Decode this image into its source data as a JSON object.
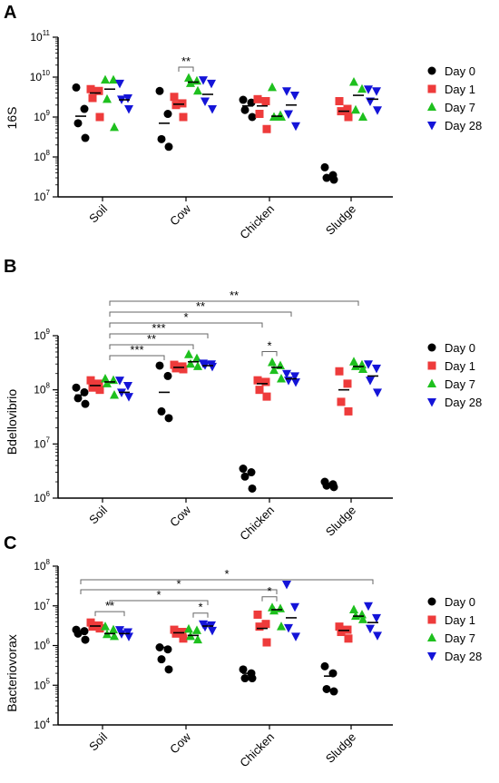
{
  "chart_data": [
    {
      "type": "scatter",
      "panel": "A",
      "ylabel": "16S",
      "yscale": "log",
      "ylim": [
        10000000,
        100000000000
      ],
      "ytick_exponents": [
        7,
        8,
        9,
        10,
        11
      ],
      "tick_base": "10",
      "categories": [
        "Soil",
        "Cow",
        "Chicken",
        "Sludge"
      ],
      "legend": {
        "placement": "right",
        "entries": [
          "Day 0",
          "Day 1",
          "Day 7",
          "Day 28"
        ]
      },
      "series": [
        {
          "name": "Day 0",
          "color": "#000000",
          "marker": "circle",
          "values": [
            [
              5500000000,
              1600000000,
              700000000,
              300000000
            ],
            [
              4500000000,
              1200000000,
              280000000,
              180000000
            ],
            [
              2700000000,
              2300000000,
              1500000000,
              1000000000
            ],
            [
              55000000,
              35000000,
              30000000,
              27000000
            ]
          ]
        },
        {
          "name": "Day 1",
          "color": "#ee3b3b",
          "marker": "square",
          "values": [
            [
              5000000000,
              4500000000,
              3000000000,
              1000000000
            ],
            [
              3200000000,
              2200000000,
              2000000000,
              1000000000
            ],
            [
              2800000000,
              2500000000,
              1200000000,
              500000000
            ],
            [
              2500000000,
              1600000000,
              1400000000,
              1000000000
            ]
          ]
        },
        {
          "name": "Day 7",
          "color": "#1ec01e",
          "marker": "triangle-up",
          "values": [
            [
              8500000000,
              8500000000,
              2800000000,
              550000000
            ],
            [
              9500000000,
              8000000000,
              7000000000,
              4500000000
            ],
            [
              5500000000,
              1100000000,
              1000000000,
              1000000000
            ],
            [
              7500000000,
              5000000000,
              1500000000,
              1000000000
            ]
          ]
        },
        {
          "name": "Day 28",
          "color": "#1414d8",
          "marker": "triangle-down",
          "values": [
            [
              7000000000,
              3000000000,
              2800000000,
              1600000000
            ],
            [
              8500000000,
              7000000000,
              2500000000,
              1600000000
            ],
            [
              4500000000,
              3500000000,
              1200000000,
              600000000
            ],
            [
              5000000000,
              4500000000,
              2500000000,
              1500000000
            ]
          ]
        }
      ],
      "medians": [
        [
          1050000000,
          4000000000,
          5000000000,
          2700000000
        ],
        [
          700000000,
          2100000000,
          7500000000,
          3700000000
        ],
        [
          1900000000,
          1900000000,
          1050000000,
          2000000000
        ],
        [
          32000000,
          1400000000,
          3500000000,
          2800000000
        ]
      ],
      "significance": [
        {
          "from": {
            "category": "Cow",
            "series": "Day 1"
          },
          "to": {
            "category": "Cow",
            "series": "Day 7"
          },
          "label": "**",
          "tier": 0
        }
      ]
    },
    {
      "type": "scatter",
      "panel": "B",
      "ylabel": "Bdellovibrio",
      "yscale": "log",
      "ylim": [
        1000000,
        1000000000
      ],
      "ytick_exponents": [
        6,
        7,
        8,
        9
      ],
      "tick_base": "10",
      "categories": [
        "Soil",
        "Cow",
        "Chicken",
        "Sludge"
      ],
      "legend": {
        "placement": "right",
        "entries": [
          "Day 0",
          "Day 1",
          "Day 7",
          "Day 28"
        ]
      },
      "series": [
        {
          "name": "Day 0",
          "color": "#000000",
          "marker": "circle",
          "values": [
            [
              110000000,
              90000000,
              70000000,
              55000000
            ],
            [
              280000000,
              180000000,
              40000000,
              30000000
            ],
            [
              3500000,
              3000000,
              2500000,
              1500000
            ],
            [
              2000000,
              1800000,
              1700000,
              1600000
            ]
          ]
        },
        {
          "name": "Day 1",
          "color": "#ee3b3b",
          "marker": "square",
          "values": [
            [
              150000000,
              130000000,
              110000000,
              100000000
            ],
            [
              290000000,
              270000000,
              250000000,
              240000000
            ],
            [
              150000000,
              140000000,
              100000000,
              75000000
            ],
            [
              220000000,
              130000000,
              60000000,
              40000000
            ]
          ]
        },
        {
          "name": "Day 7",
          "color": "#1ec01e",
          "marker": "triangle-up",
          "values": [
            [
              160000000,
              150000000,
              130000000,
              80000000
            ],
            [
              450000000,
              380000000,
              300000000,
              270000000
            ],
            [
              320000000,
              280000000,
              230000000,
              160000000
            ],
            [
              330000000,
              290000000,
              270000000,
              240000000
            ]
          ]
        },
        {
          "name": "Day 28",
          "color": "#1414d8",
          "marker": "triangle-down",
          "values": [
            [
              150000000,
              120000000,
              90000000,
              75000000
            ],
            [
              310000000,
              300000000,
              290000000,
              270000000
            ],
            [
              200000000,
              180000000,
              150000000,
              140000000
            ],
            [
              300000000,
              250000000,
              150000000,
              90000000
            ]
          ]
        }
      ],
      "medians": [
        [
          80000000,
          120000000,
          140000000,
          90000000
        ],
        [
          90000000,
          260000000,
          330000000,
          280000000
        ],
        [
          2700000,
          130000000,
          260000000,
          160000000
        ],
        [
          1800000,
          100000000,
          270000000,
          180000000
        ]
      ],
      "significance": [
        {
          "from": {
            "category": "Soil",
            "series": "Day 7"
          },
          "to": {
            "category": "Cow",
            "series": "Day 0"
          },
          "label": "***",
          "tier": 0
        },
        {
          "from": {
            "category": "Soil",
            "series": "Day 7"
          },
          "to": {
            "category": "Cow",
            "series": "Day 7"
          },
          "label": "**",
          "tier": 1
        },
        {
          "from": {
            "category": "Soil",
            "series": "Day 7"
          },
          "to": {
            "category": "Cow",
            "series": "Day 28"
          },
          "label": "***",
          "tier": 2
        },
        {
          "from": {
            "category": "Soil",
            "series": "Day 7"
          },
          "to": {
            "category": "Chicken",
            "series": "Day 1"
          },
          "label": "*",
          "tier": 3
        },
        {
          "from": {
            "category": "Soil",
            "series": "Day 7"
          },
          "to": {
            "category": "Chicken",
            "series": "Day 28"
          },
          "label": "**",
          "tier": 4
        },
        {
          "from": {
            "category": "Soil",
            "series": "Day 7"
          },
          "to": {
            "category": "Sludge",
            "series": "Day 7"
          },
          "label": "**",
          "tier": 5
        },
        {
          "from": {
            "category": "Chicken",
            "series": "Day 1"
          },
          "to": {
            "category": "Chicken",
            "series": "Day 7"
          },
          "label": "*",
          "tier": 0
        }
      ]
    },
    {
      "type": "scatter",
      "panel": "C",
      "ylabel": "Bacteriovorax",
      "yscale": "log",
      "ylim": [
        10000,
        100000000
      ],
      "ytick_exponents": [
        4,
        5,
        6,
        7,
        8
      ],
      "tick_base": "10",
      "categories": [
        "Soil",
        "Cow",
        "Chicken",
        "Sludge"
      ],
      "legend": {
        "placement": "right",
        "entries": [
          "Day 0",
          "Day 1",
          "Day 7",
          "Day 28"
        ]
      },
      "series": [
        {
          "name": "Day 0",
          "color": "#000000",
          "marker": "circle",
          "values": [
            [
              2500000,
              2300000,
              2000000,
              1400000
            ],
            [
              900000,
              800000,
              450000,
              250000
            ],
            [
              250000,
              200000,
              150000,
              150000
            ],
            [
              300000,
              200000,
              80000,
              70000
            ]
          ]
        },
        {
          "name": "Day 1",
          "color": "#ee3b3b",
          "marker": "square",
          "values": [
            [
              3800000,
              3200000,
              3000000,
              2700000
            ],
            [
              2500000,
              2200000,
              2000000,
              1500000
            ],
            [
              6000000,
              3500000,
              3000000,
              1200000
            ],
            [
              3000000,
              2500000,
              2200000,
              1500000
            ]
          ]
        },
        {
          "name": "Day 7",
          "color": "#1ec01e",
          "marker": "triangle-up",
          "values": [
            [
              3000000,
              2500000,
              1900000,
              1700000
            ],
            [
              2600000,
              2400000,
              1700000,
              1400000
            ],
            [
              9000000,
              8500000,
              7500000,
              3000000
            ],
            [
              8000000,
              6000000,
              5500000,
              4500000
            ]
          ]
        },
        {
          "name": "Day 28",
          "color": "#1414d8",
          "marker": "triangle-down",
          "values": [
            [
              2500000,
              2200000,
              2000000,
              1700000
            ],
            [
              3500000,
              3300000,
              3000000,
              2400000
            ],
            [
              35000000,
              9500000,
              2800000,
              1700000
            ],
            [
              10000000,
              5000000,
              2700000,
              1800000
            ]
          ]
        }
      ],
      "medians": [
        [
          2200000,
          3100000,
          2000000,
          2000000
        ],
        [
          900000,
          2100000,
          1800000,
          3100000
        ],
        [
          200000,
          2700000,
          8000000,
          5000000
        ],
        [
          170000,
          2400000,
          5500000,
          3800000
        ]
      ],
      "significance": [
        {
          "from": {
            "category": "Soil",
            "series": "Day 1"
          },
          "to": {
            "category": "Soil",
            "series": "Day 28"
          },
          "label": "**",
          "tier": 0
        },
        {
          "from": {
            "category": "Soil",
            "series": "Day 7"
          },
          "to": {
            "category": "Cow",
            "series": "Day 28"
          },
          "label": "*",
          "tier": 1
        },
        {
          "from": {
            "category": "Soil",
            "series": "Day 0"
          },
          "to": {
            "category": "Chicken",
            "series": "Day 7"
          },
          "label": "*",
          "tier": 2
        },
        {
          "from": {
            "category": "Soil",
            "series": "Day 0"
          },
          "to": {
            "category": "Sludge",
            "series": "Day 28"
          },
          "label": "*",
          "tier": 3
        },
        {
          "from": {
            "category": "Cow",
            "series": "Day 7"
          },
          "to": {
            "category": "Cow",
            "series": "Day 28"
          },
          "label": "*",
          "tier": 0
        },
        {
          "from": {
            "category": "Chicken",
            "series": "Day 1"
          },
          "to": {
            "category": "Chicken",
            "series": "Day 7"
          },
          "label": "*",
          "tier": 0
        }
      ]
    }
  ]
}
